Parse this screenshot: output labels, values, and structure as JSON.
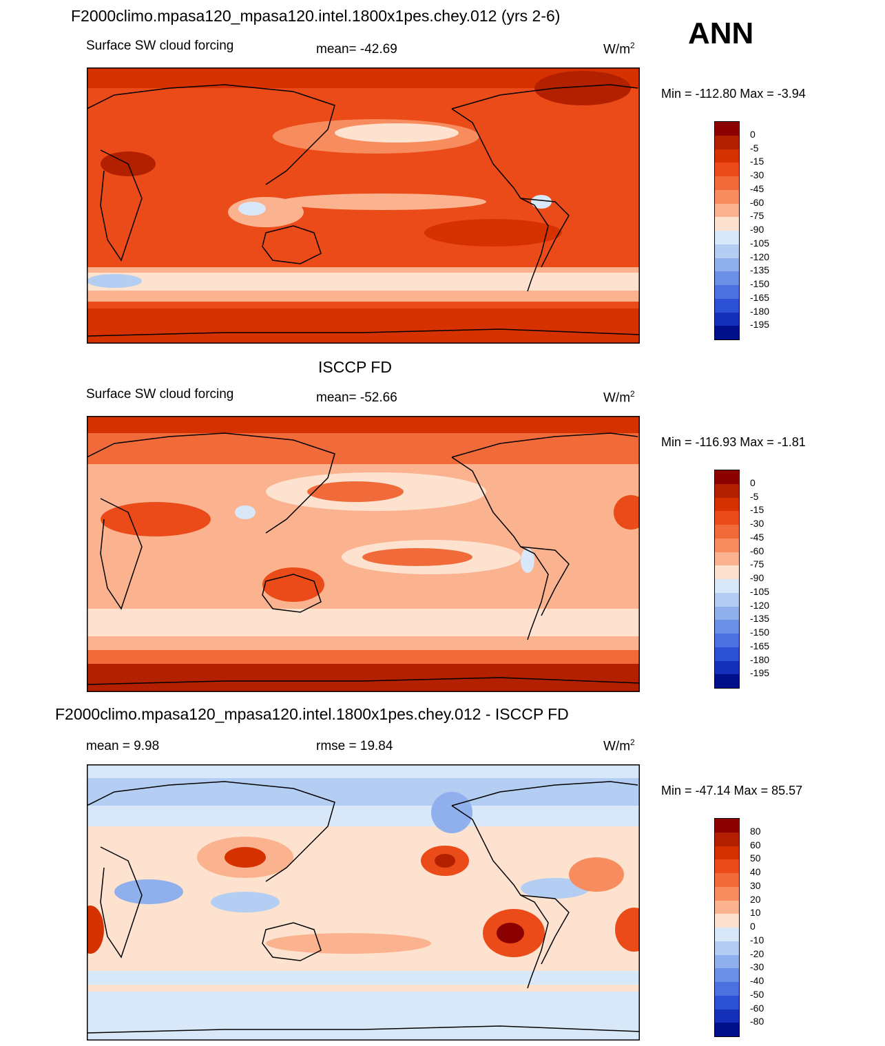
{
  "season": "ANN",
  "panels": [
    {
      "title": "F2000climo.mpasa120_mpasa120.intel.1800x1pes.chey.012 (yrs 2-6)",
      "left_label": "Surface SW cloud forcing",
      "center_label": "mean= -42.69",
      "units": "W/m",
      "units_sup": "2",
      "minmax": "Min = -112.80 Max =  -3.94"
    },
    {
      "title": "ISCCP FD",
      "left_label": "Surface SW cloud forcing",
      "center_label": "mean= -52.66",
      "units": "W/m",
      "units_sup": "2",
      "minmax": "Min = -116.93 Max =  -1.81"
    },
    {
      "title": "F2000climo.mpasa120_mpasa120.intel.1800x1pes.chey.012 - ISCCP FD",
      "left_label": "mean =   9.98",
      "center_label": "rmse =  19.84",
      "units": "W/m",
      "units_sup": "2",
      "minmax": "Min = -47.14 Max =  85.57"
    }
  ],
  "colorbars": {
    "abs_labels": [
      "0",
      "-5",
      "-15",
      "-30",
      "-45",
      "-60",
      "-75",
      "-90",
      "-105",
      "-120",
      "-135",
      "-150",
      "-165",
      "-180",
      "-195"
    ],
    "diff_labels": [
      "80",
      "60",
      "50",
      "40",
      "30",
      "20",
      "10",
      "0",
      "-10",
      "-20",
      "-30",
      "-40",
      "-50",
      "-60",
      "-80"
    ],
    "colors": [
      "#8b0000",
      "#b22000",
      "#d63200",
      "#ea4b18",
      "#f06a3a",
      "#f78c5e",
      "#fbb38f",
      "#fde3cf",
      "#d8e8f8",
      "#b3cdf3",
      "#8fb0ed",
      "#6b91e6",
      "#4a71df",
      "#2b50d3",
      "#1530b8",
      "#00108a"
    ]
  }
}
